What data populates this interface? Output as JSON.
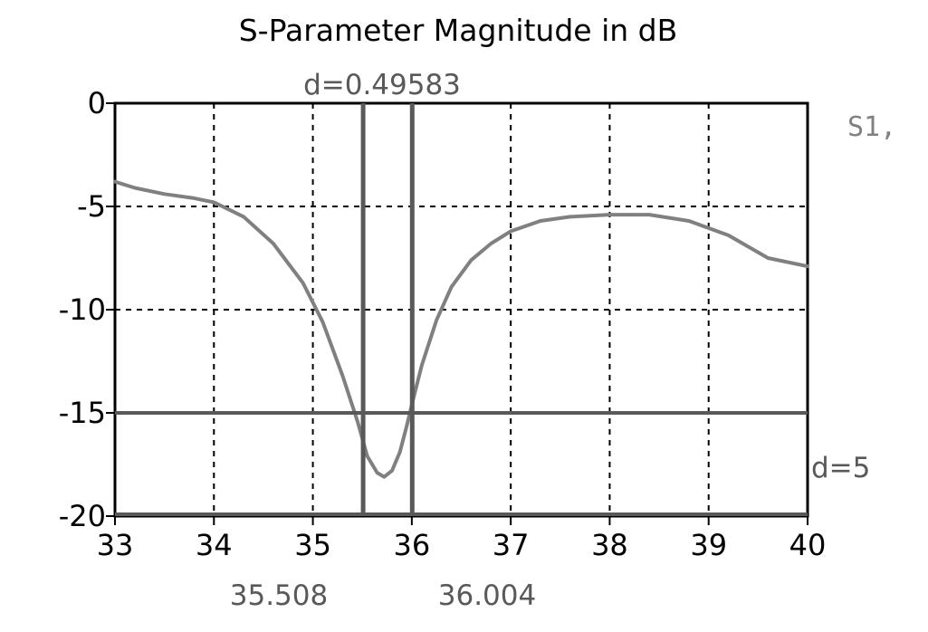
{
  "chart_data": {
    "type": "line",
    "title": "S-Parameter Magnitude in dB",
    "xlabel": "",
    "ylabel": "",
    "xlim": [
      33,
      40
    ],
    "ylim": [
      -20,
      0
    ],
    "xticks": [
      "33",
      "34",
      "35",
      "36",
      "37",
      "38",
      "39",
      "40"
    ],
    "yticks": [
      "0",
      "-5",
      "-10",
      "-15",
      "-20"
    ],
    "grid": true,
    "legend": "top-right",
    "series": [
      {
        "name": "S1,",
        "color": "#808080",
        "x": [
          33.0,
          33.2,
          33.5,
          33.8,
          34.0,
          34.3,
          34.6,
          34.9,
          35.1,
          35.3,
          35.45,
          35.55,
          35.65,
          35.72,
          35.8,
          35.88,
          35.95,
          36.0,
          36.1,
          36.25,
          36.4,
          36.6,
          36.8,
          37.0,
          37.3,
          37.6,
          38.0,
          38.4,
          38.8,
          39.2,
          39.6,
          40.0
        ],
        "y": [
          -3.8,
          -4.1,
          -4.4,
          -4.6,
          -4.8,
          -5.5,
          -6.8,
          -8.7,
          -10.6,
          -13.2,
          -15.4,
          -17.1,
          -17.9,
          -18.1,
          -17.8,
          -16.9,
          -15.6,
          -14.6,
          -12.7,
          -10.5,
          -8.9,
          -7.6,
          -6.8,
          -6.2,
          -5.7,
          -5.5,
          -5.4,
          -5.4,
          -5.7,
          -6.4,
          -7.5,
          -7.9
        ]
      }
    ],
    "markers": {
      "vertical": {
        "label": "d=0.49583",
        "x1": 35.508,
        "x2": 36.004,
        "x1_label": "35.508",
        "x2_label": "36.004"
      },
      "horizontal": {
        "label": "d=5",
        "y1": -15,
        "y2": -20
      }
    },
    "colors": {
      "curve": "#808080",
      "marker": "#595959",
      "grid": "#000000",
      "marker_label": "#595959"
    }
  }
}
